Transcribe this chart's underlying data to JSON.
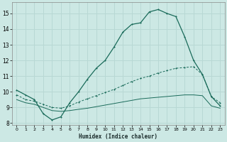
{
  "xlabel": "Humidex (Indice chaleur)",
  "bg_color": "#cce8e4",
  "grid_color": "#b8d8d4",
  "line_color": "#1a6b5a",
  "xlim": [
    -0.5,
    23.5
  ],
  "ylim": [
    7.9,
    15.7
  ],
  "yticks": [
    8,
    9,
    10,
    11,
    12,
    13,
    14,
    15
  ],
  "xticks": [
    0,
    1,
    2,
    3,
    4,
    5,
    6,
    7,
    8,
    9,
    10,
    11,
    12,
    13,
    14,
    15,
    16,
    17,
    18,
    19,
    20,
    21,
    22,
    23
  ],
  "line1_x": [
    0,
    1,
    2,
    3,
    4,
    5,
    6,
    7,
    8,
    9,
    10,
    11,
    12,
    13,
    14,
    15,
    16,
    17,
    18,
    19,
    20,
    21,
    22,
    23
  ],
  "line1_y": [
    10.1,
    9.8,
    9.5,
    8.6,
    8.2,
    8.4,
    9.3,
    10.0,
    10.8,
    11.5,
    12.0,
    12.85,
    13.8,
    14.3,
    14.4,
    15.1,
    15.25,
    15.0,
    14.8,
    13.5,
    12.0,
    11.1,
    9.7,
    9.1
  ],
  "line2_x": [
    0,
    1,
    2,
    3,
    4,
    5,
    6,
    7,
    8,
    9,
    10,
    11,
    12,
    13,
    14,
    15,
    16,
    17,
    18,
    19,
    20,
    21,
    22,
    23
  ],
  "line2_y": [
    9.8,
    9.5,
    9.4,
    9.2,
    9.0,
    8.95,
    9.1,
    9.35,
    9.55,
    9.75,
    9.95,
    10.15,
    10.4,
    10.65,
    10.85,
    11.0,
    11.2,
    11.35,
    11.5,
    11.55,
    11.6,
    11.1,
    9.7,
    9.3
  ],
  "line3_x": [
    0,
    1,
    2,
    3,
    4,
    5,
    6,
    7,
    8,
    9,
    10,
    11,
    12,
    13,
    14,
    15,
    16,
    17,
    18,
    19,
    20,
    21,
    22,
    23
  ],
  "line3_y": [
    9.5,
    9.3,
    9.2,
    9.0,
    8.8,
    8.75,
    8.8,
    8.88,
    8.95,
    9.05,
    9.15,
    9.25,
    9.35,
    9.45,
    9.55,
    9.6,
    9.65,
    9.7,
    9.75,
    9.8,
    9.8,
    9.75,
    9.1,
    8.95
  ]
}
